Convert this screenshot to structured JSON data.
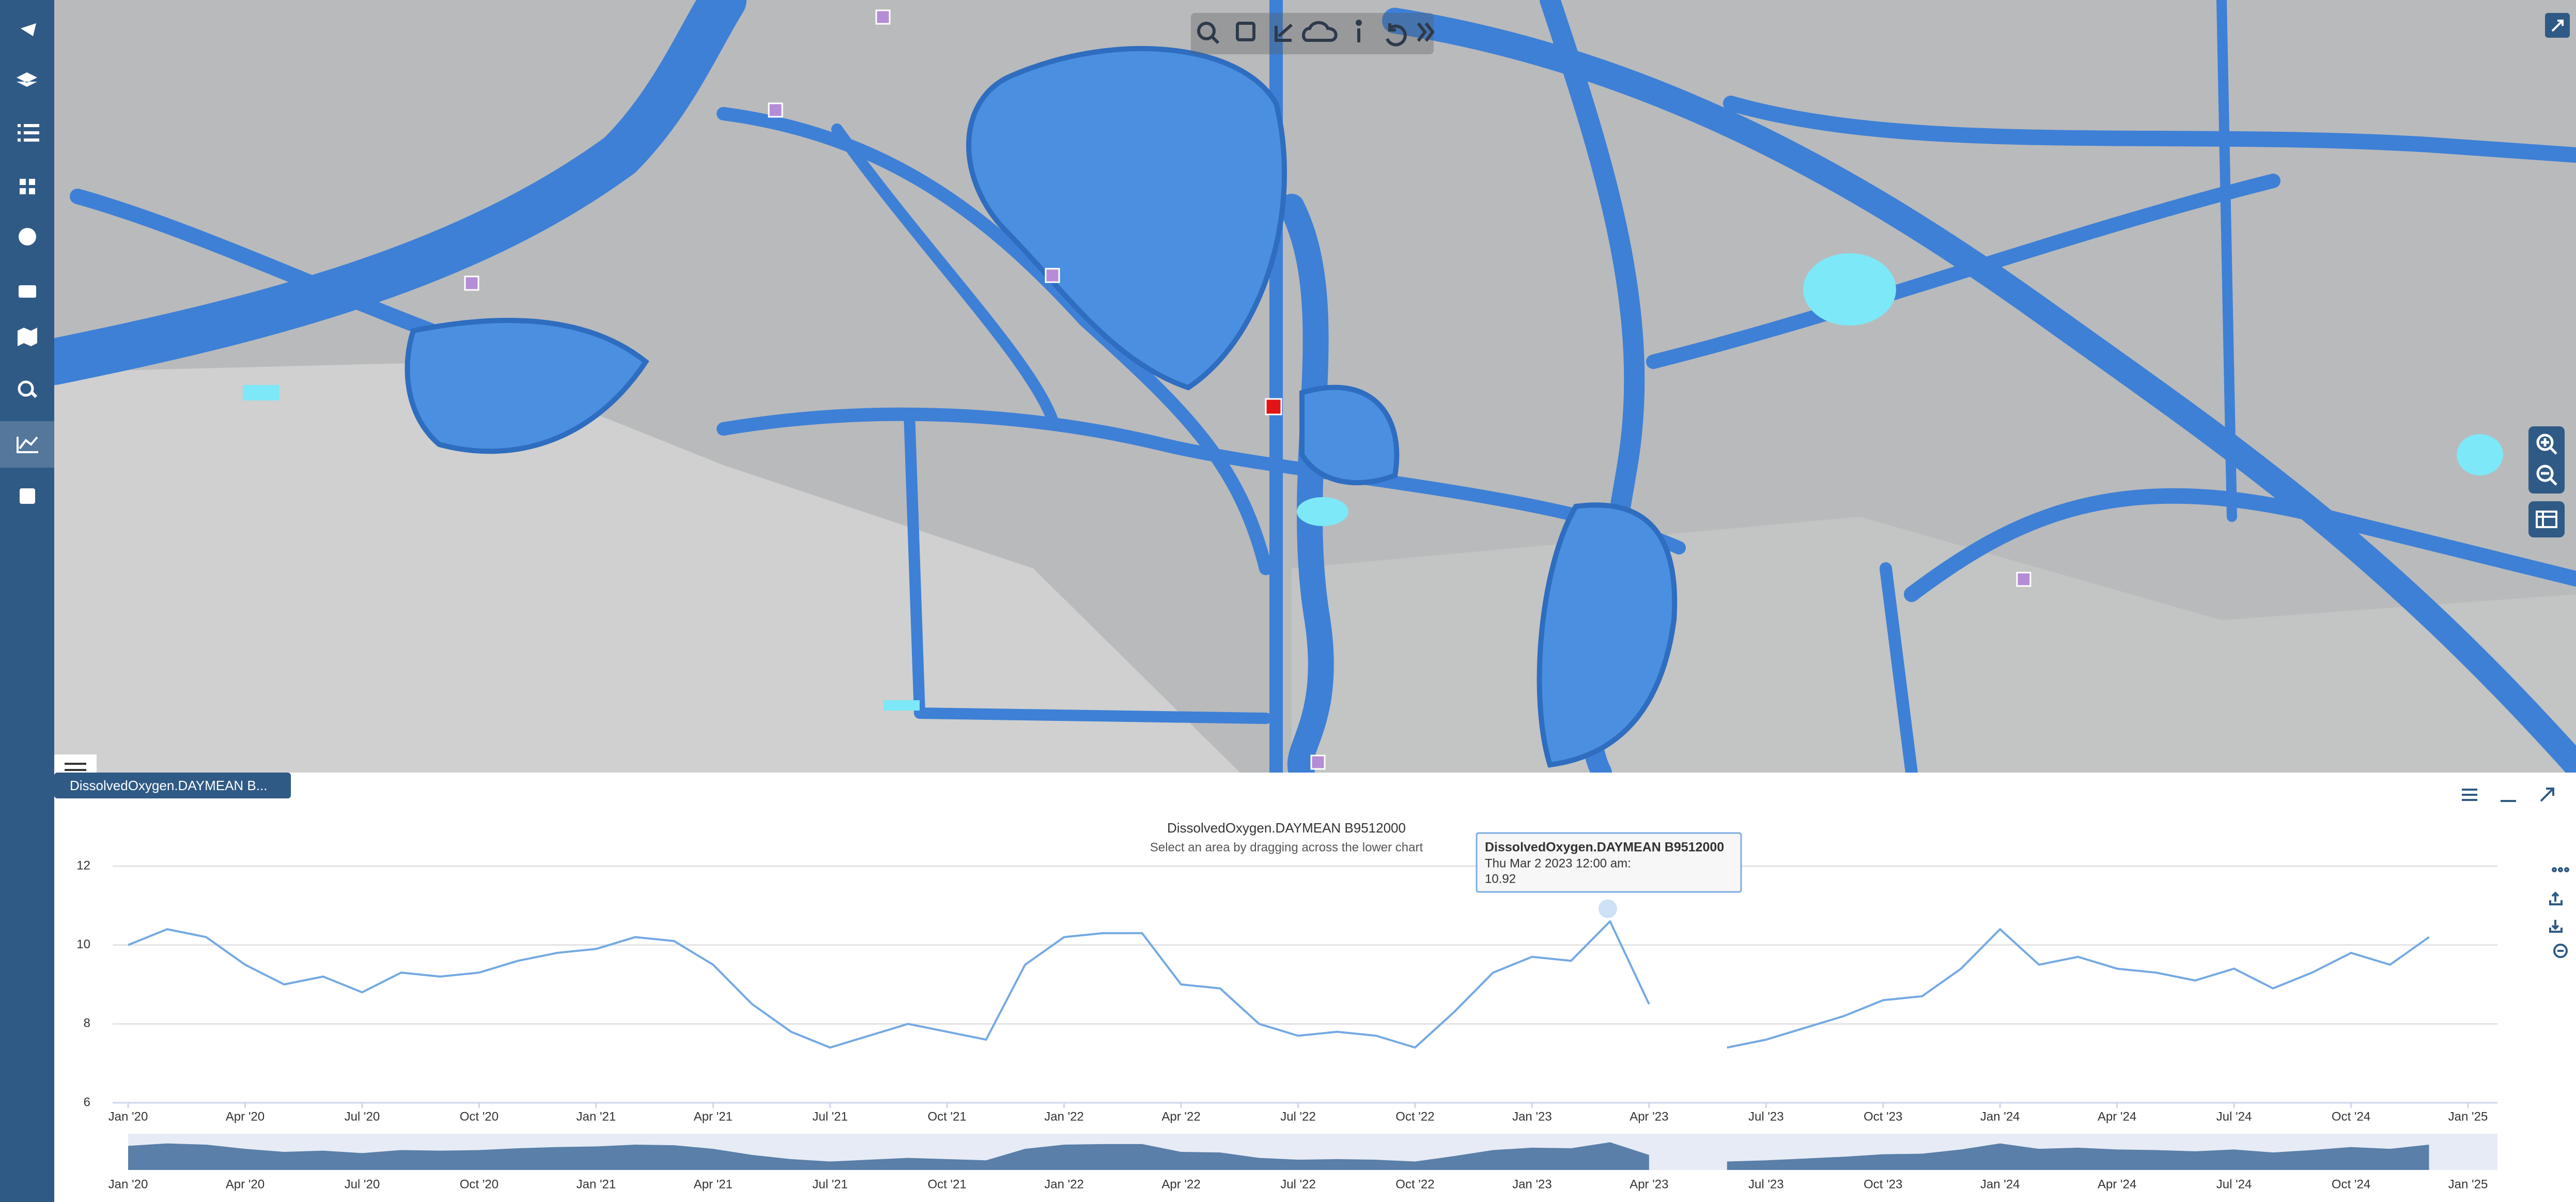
{
  "panel_tab": "DissolvedOxygen.DAYMEAN B...",
  "chart_data": {
    "type": "line",
    "title": "DissolvedOxygen.DAYMEAN B9512000",
    "subtitle": "Select an area by dragging across the lower chart",
    "x": [
      "2020-01",
      "2020-02",
      "2020-03",
      "2020-04",
      "2020-05",
      "2020-06",
      "2020-07",
      "2020-08",
      "2020-09",
      "2020-10",
      "2020-11",
      "2020-12",
      "2021-01",
      "2021-02",
      "2021-03",
      "2021-04",
      "2021-05",
      "2021-06",
      "2021-07",
      "2021-08",
      "2021-09",
      "2021-10",
      "2021-11",
      "2021-12",
      "2022-01",
      "2022-02",
      "2022-03",
      "2022-04",
      "2022-05",
      "2022-06",
      "2022-07",
      "2022-08",
      "2022-09",
      "2022-10",
      "2022-11",
      "2022-12",
      "2023-01",
      "2023-02",
      "2023-03",
      "2023-04",
      "2023-05",
      "2023-06",
      "2023-07",
      "2023-08",
      "2023-09",
      "2023-10",
      "2023-11",
      "2023-12",
      "2024-01",
      "2024-02",
      "2024-03",
      "2024-04",
      "2024-05",
      "2024-06",
      "2024-07",
      "2024-08",
      "2024-09",
      "2024-10",
      "2024-11",
      "2024-12"
    ],
    "series": [
      {
        "name": "DissolvedOxygen.DAYMEAN B9512000",
        "color": "#74a9e3",
        "values": [
          10.0,
          10.4,
          10.2,
          9.5,
          9.0,
          9.2,
          8.8,
          9.3,
          9.2,
          9.3,
          9.6,
          9.8,
          9.9,
          10.2,
          10.1,
          9.5,
          8.5,
          7.8,
          7.4,
          7.7,
          8.0,
          7.8,
          7.6,
          9.5,
          10.2,
          10.3,
          10.3,
          9.0,
          8.9,
          8.0,
          7.7,
          7.8,
          7.7,
          7.4,
          8.3,
          9.3,
          9.7,
          9.6,
          10.6,
          8.5,
          null,
          7.4,
          7.6,
          7.9,
          8.2,
          8.6,
          8.7,
          9.4,
          10.4,
          9.5,
          9.7,
          9.4,
          9.3,
          9.1,
          9.4,
          8.9,
          9.3,
          9.8,
          9.5,
          10.2
        ]
      }
    ],
    "xlim": [
      "2020-01",
      "2025-01"
    ],
    "xticks": [
      {
        "value": "2020-01",
        "label": "Jan '20"
      },
      {
        "value": "2020-04",
        "label": "Apr '20"
      },
      {
        "value": "2020-07",
        "label": "Jul '20"
      },
      {
        "value": "2020-10",
        "label": "Oct '20"
      },
      {
        "value": "2021-01",
        "label": "Jan '21"
      },
      {
        "value": "2021-04",
        "label": "Apr '21"
      },
      {
        "value": "2021-07",
        "label": "Jul '21"
      },
      {
        "value": "2021-10",
        "label": "Oct '21"
      },
      {
        "value": "2022-01",
        "label": "Jan '22"
      },
      {
        "value": "2022-04",
        "label": "Apr '22"
      },
      {
        "value": "2022-07",
        "label": "Jul '22"
      },
      {
        "value": "2022-10",
        "label": "Oct '22"
      },
      {
        "value": "2023-01",
        "label": "Jan '23"
      },
      {
        "value": "2023-04",
        "label": "Apr '23"
      },
      {
        "value": "2023-07",
        "label": "Jul '23"
      },
      {
        "value": "2023-10",
        "label": "Oct '23"
      },
      {
        "value": "2024-01",
        "label": "Jan '24"
      },
      {
        "value": "2024-04",
        "label": "Apr '24"
      },
      {
        "value": "2024-07",
        "label": "Jul '24"
      },
      {
        "value": "2024-10",
        "label": "Oct '24"
      },
      {
        "value": "2025-01",
        "label": "Jan '25"
      }
    ],
    "ylim": [
      6,
      12
    ],
    "yticks": [
      6,
      8,
      10,
      12
    ],
    "grid": true,
    "tooltip": {
      "series": "DissolvedOxygen.DAYMEAN B9512000",
      "date": "Thu Mar 2 2023 12:00 am:",
      "value": 10.92
    }
  }
}
